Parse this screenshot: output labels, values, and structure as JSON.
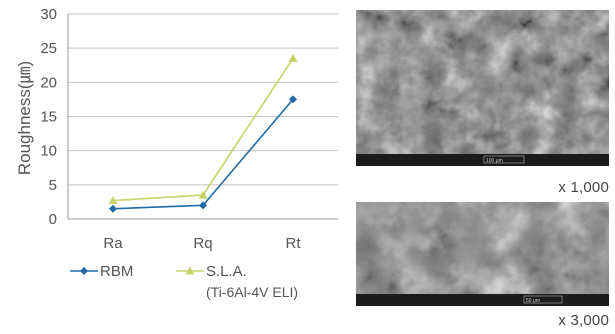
{
  "chart_data": {
    "type": "line",
    "categories": [
      "Ra",
      "Rq",
      "Rt"
    ],
    "ylim": [
      0,
      30
    ],
    "yticks": [
      0,
      5,
      10,
      15,
      20,
      25,
      30
    ],
    "ylabel": "Roughness(㎛)",
    "grid": true,
    "legend_position": "bottom",
    "series": [
      {
        "name": "RBM",
        "color": "#1f6aa5",
        "marker": "diamond",
        "values": [
          1.5,
          2.0,
          17.5
        ]
      },
      {
        "name": "S.L.A.",
        "name_line2": "(Ti-6Al-4V ELI)",
        "color": "#c8d36a",
        "marker": "triangle",
        "values": [
          2.7,
          3.5,
          23.5
        ]
      }
    ]
  },
  "images": [
    {
      "name": "sem-image-1000x",
      "magnification": "x 1,000",
      "scalebar": "100 μm"
    },
    {
      "name": "sem-image-3000x",
      "magnification": "x 3,000",
      "scalebar": "50 μm"
    }
  ]
}
